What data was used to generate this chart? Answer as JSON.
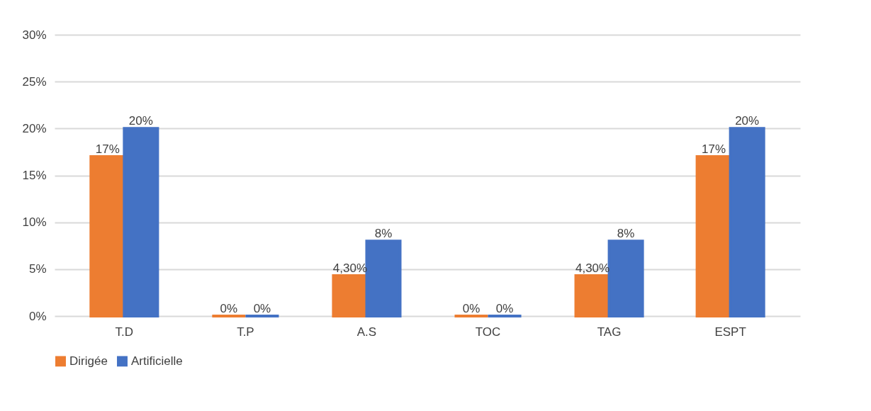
{
  "chart_data": {
    "type": "bar",
    "categories": [
      "T.D",
      "T.P",
      "A.S",
      "TOC",
      "TAG",
      "ESPT"
    ],
    "series": [
      {
        "name": "Dirigée",
        "color": "#ed7d31",
        "values": [
          17,
          0,
          4.3,
          0,
          4.3,
          17
        ],
        "value_labels": [
          "17%",
          "0%",
          "4,30%",
          "0%",
          "4,30%",
          "17%"
        ]
      },
      {
        "name": "Artificielle",
        "color": "#4472c4",
        "values": [
          20,
          0,
          8,
          0,
          8,
          20
        ],
        "value_labels": [
          "20%",
          "0%",
          "8%",
          "0%",
          "8%",
          "20%"
        ]
      }
    ],
    "ylim": [
      0,
      30
    ],
    "yticks": [
      {
        "value": 0,
        "label": "0%"
      },
      {
        "value": 5,
        "label": "5%"
      },
      {
        "value": 10,
        "label": "10%"
      },
      {
        "value": 15,
        "label": "15%"
      },
      {
        "value": 20,
        "label": "20%"
      },
      {
        "value": 25,
        "label": "25%"
      },
      {
        "value": 30,
        "label": "30%"
      }
    ],
    "grid": "y",
    "legend": "bottom"
  }
}
